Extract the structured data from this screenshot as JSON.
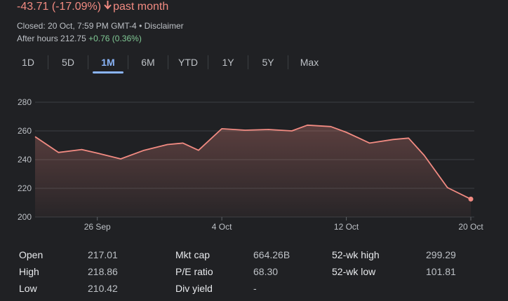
{
  "header": {
    "change_text": "-43.71 (-17.09%)",
    "arrow_icon": "arrow-down-icon",
    "period_text": "past month",
    "closed_text": "Closed: 20 Oct, 7:59 PM GMT-4",
    "separator": "•",
    "disclaimer": "Disclaimer",
    "after_hours_label": "After hours",
    "after_hours_price": "212.75",
    "after_hours_change": "+0.76 (0.36%)"
  },
  "tabs": [
    {
      "label": "1D",
      "active": false
    },
    {
      "label": "5D",
      "active": false
    },
    {
      "label": "1M",
      "active": true
    },
    {
      "label": "6M",
      "active": false
    },
    {
      "label": "YTD",
      "active": false
    },
    {
      "label": "1Y",
      "active": false
    },
    {
      "label": "5Y",
      "active": false
    },
    {
      "label": "Max",
      "active": false
    }
  ],
  "chart_data": {
    "type": "area",
    "title": "",
    "xlabel": "",
    "ylabel": "",
    "ylim": [
      200,
      280
    ],
    "yticks": [
      200,
      220,
      240,
      260,
      280
    ],
    "xticks": [
      {
        "label": "26 Sep",
        "index": 4
      },
      {
        "label": "4 Oct",
        "index": 12
      },
      {
        "label": "12 Oct",
        "index": 20
      },
      {
        "label": "20 Oct",
        "index": 28
      }
    ],
    "grid": true,
    "line_color": "#f28b82",
    "series": [
      {
        "values": [
          256,
          245,
          247,
          244.5,
          240.5,
          246.5,
          250.5,
          251.5,
          246.5,
          261.5,
          260.5,
          261,
          260,
          264,
          263,
          259,
          251.5,
          254,
          255,
          243,
          220.5,
          212.5
        ]
      }
    ],
    "point_index": [
      0,
      1.5,
      3,
      4,
      5.5,
      7,
      8.5,
      9.5,
      10.5,
      12,
      13.5,
      15,
      16.5,
      17.5,
      19,
      20,
      21.5,
      23,
      24,
      25,
      26.5,
      28
    ]
  },
  "stats": [
    {
      "label": "Open",
      "value": "217.01"
    },
    {
      "label": "High",
      "value": "218.86"
    },
    {
      "label": "Low",
      "value": "210.42"
    },
    {
      "label": "Mkt cap",
      "value": "664.26B"
    },
    {
      "label": "P/E ratio",
      "value": "68.30"
    },
    {
      "label": "Div yield",
      "value": "-"
    },
    {
      "label": "52-wk high",
      "value": "299.29"
    },
    {
      "label": "52-wk low",
      "value": "101.81"
    }
  ]
}
